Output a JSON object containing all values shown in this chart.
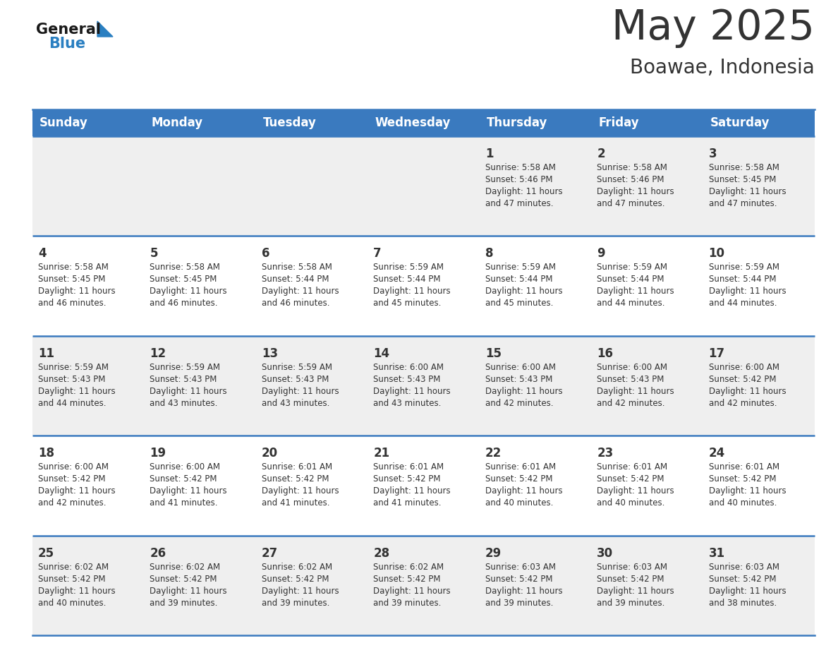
{
  "title": "May 2025",
  "subtitle": "Boawae, Indonesia",
  "header_bg": "#3a7abf",
  "header_text": "#ffffff",
  "row_bg_odd": "#efefef",
  "row_bg_even": "#ffffff",
  "separator_color": "#3a7abf",
  "day_headers": [
    "Sunday",
    "Monday",
    "Tuesday",
    "Wednesday",
    "Thursday",
    "Friday",
    "Saturday"
  ],
  "calendar": [
    [
      {
        "day": "",
        "sunrise": "",
        "sunset": "",
        "daylight": ""
      },
      {
        "day": "",
        "sunrise": "",
        "sunset": "",
        "daylight": ""
      },
      {
        "day": "",
        "sunrise": "",
        "sunset": "",
        "daylight": ""
      },
      {
        "day": "",
        "sunrise": "",
        "sunset": "",
        "daylight": ""
      },
      {
        "day": "1",
        "sunrise": "5:58 AM",
        "sunset": "5:46 PM",
        "daylight": "11 hours and 47 minutes."
      },
      {
        "day": "2",
        "sunrise": "5:58 AM",
        "sunset": "5:46 PM",
        "daylight": "11 hours and 47 minutes."
      },
      {
        "day": "3",
        "sunrise": "5:58 AM",
        "sunset": "5:45 PM",
        "daylight": "11 hours and 47 minutes."
      }
    ],
    [
      {
        "day": "4",
        "sunrise": "5:58 AM",
        "sunset": "5:45 PM",
        "daylight": "11 hours and 46 minutes."
      },
      {
        "day": "5",
        "sunrise": "5:58 AM",
        "sunset": "5:45 PM",
        "daylight": "11 hours and 46 minutes."
      },
      {
        "day": "6",
        "sunrise": "5:58 AM",
        "sunset": "5:44 PM",
        "daylight": "11 hours and 46 minutes."
      },
      {
        "day": "7",
        "sunrise": "5:59 AM",
        "sunset": "5:44 PM",
        "daylight": "11 hours and 45 minutes."
      },
      {
        "day": "8",
        "sunrise": "5:59 AM",
        "sunset": "5:44 PM",
        "daylight": "11 hours and 45 minutes."
      },
      {
        "day": "9",
        "sunrise": "5:59 AM",
        "sunset": "5:44 PM",
        "daylight": "11 hours and 44 minutes."
      },
      {
        "day": "10",
        "sunrise": "5:59 AM",
        "sunset": "5:44 PM",
        "daylight": "11 hours and 44 minutes."
      }
    ],
    [
      {
        "day": "11",
        "sunrise": "5:59 AM",
        "sunset": "5:43 PM",
        "daylight": "11 hours and 44 minutes."
      },
      {
        "day": "12",
        "sunrise": "5:59 AM",
        "sunset": "5:43 PM",
        "daylight": "11 hours and 43 minutes."
      },
      {
        "day": "13",
        "sunrise": "5:59 AM",
        "sunset": "5:43 PM",
        "daylight": "11 hours and 43 minutes."
      },
      {
        "day": "14",
        "sunrise": "6:00 AM",
        "sunset": "5:43 PM",
        "daylight": "11 hours and 43 minutes."
      },
      {
        "day": "15",
        "sunrise": "6:00 AM",
        "sunset": "5:43 PM",
        "daylight": "11 hours and 42 minutes."
      },
      {
        "day": "16",
        "sunrise": "6:00 AM",
        "sunset": "5:43 PM",
        "daylight": "11 hours and 42 minutes."
      },
      {
        "day": "17",
        "sunrise": "6:00 AM",
        "sunset": "5:42 PM",
        "daylight": "11 hours and 42 minutes."
      }
    ],
    [
      {
        "day": "18",
        "sunrise": "6:00 AM",
        "sunset": "5:42 PM",
        "daylight": "11 hours and 42 minutes."
      },
      {
        "day": "19",
        "sunrise": "6:00 AM",
        "sunset": "5:42 PM",
        "daylight": "11 hours and 41 minutes."
      },
      {
        "day": "20",
        "sunrise": "6:01 AM",
        "sunset": "5:42 PM",
        "daylight": "11 hours and 41 minutes."
      },
      {
        "day": "21",
        "sunrise": "6:01 AM",
        "sunset": "5:42 PM",
        "daylight": "11 hours and 41 minutes."
      },
      {
        "day": "22",
        "sunrise": "6:01 AM",
        "sunset": "5:42 PM",
        "daylight": "11 hours and 40 minutes."
      },
      {
        "day": "23",
        "sunrise": "6:01 AM",
        "sunset": "5:42 PM",
        "daylight": "11 hours and 40 minutes."
      },
      {
        "day": "24",
        "sunrise": "6:01 AM",
        "sunset": "5:42 PM",
        "daylight": "11 hours and 40 minutes."
      }
    ],
    [
      {
        "day": "25",
        "sunrise": "6:02 AM",
        "sunset": "5:42 PM",
        "daylight": "11 hours and 40 minutes."
      },
      {
        "day": "26",
        "sunrise": "6:02 AM",
        "sunset": "5:42 PM",
        "daylight": "11 hours and 39 minutes."
      },
      {
        "day": "27",
        "sunrise": "6:02 AM",
        "sunset": "5:42 PM",
        "daylight": "11 hours and 39 minutes."
      },
      {
        "day": "28",
        "sunrise": "6:02 AM",
        "sunset": "5:42 PM",
        "daylight": "11 hours and 39 minutes."
      },
      {
        "day": "29",
        "sunrise": "6:03 AM",
        "sunset": "5:42 PM",
        "daylight": "11 hours and 39 minutes."
      },
      {
        "day": "30",
        "sunrise": "6:03 AM",
        "sunset": "5:42 PM",
        "daylight": "11 hours and 39 minutes."
      },
      {
        "day": "31",
        "sunrise": "6:03 AM",
        "sunset": "5:42 PM",
        "daylight": "11 hours and 38 minutes."
      }
    ]
  ],
  "text_color": "#333333",
  "logo_general_color": "#1a1a1a",
  "logo_blue_color": "#2a7fc1"
}
